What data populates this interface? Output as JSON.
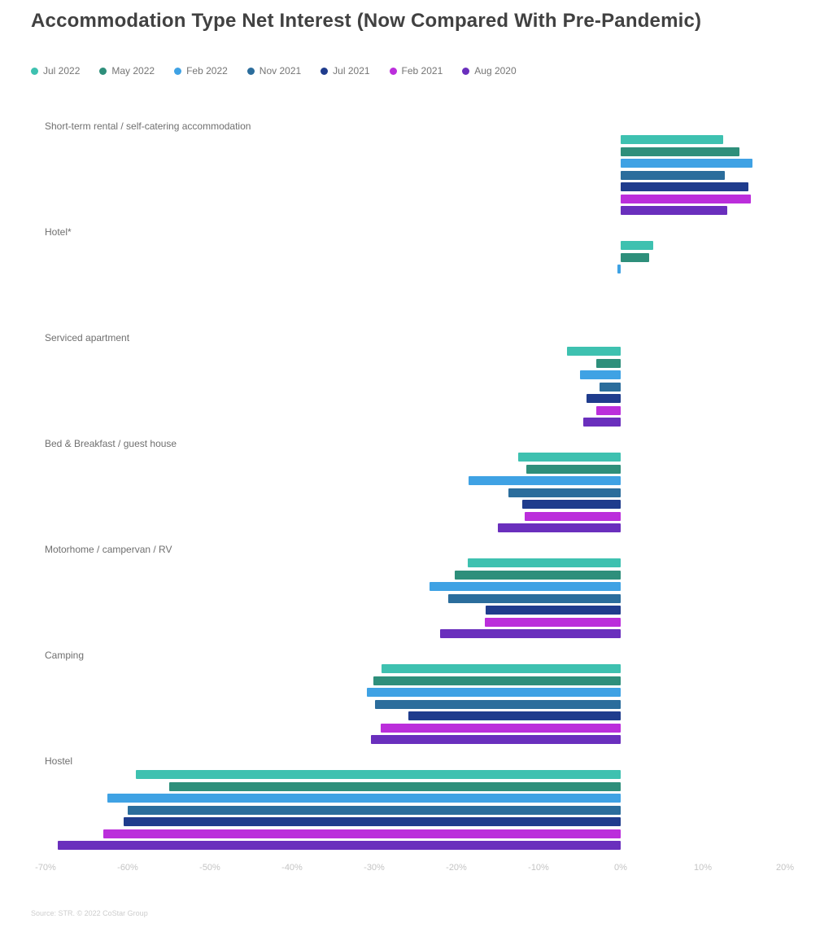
{
  "title": "Accommodation Type Net Interest (Now Compared With Pre-Pandemic)",
  "source": "Source: STR. © 2022 CoStar Group",
  "chart_data": {
    "type": "bar",
    "orientation": "horizontal",
    "title": "Accommodation Type Net Interest (Now Compared With Pre-Pandemic)",
    "categories": [
      "Short-term rental / self-catering accommodation",
      "Hotel*",
      "Serviced apartment",
      "Bed & Breakfast / guest house",
      "Motorhome / campervan / RV",
      "Camping",
      "Hostel"
    ],
    "series": [
      {
        "name": "Jul 2022",
        "color": "#3EC1B0",
        "values": [
          12.5,
          4.0,
          -6.5,
          -12.5,
          -18.6,
          -29.1,
          -59.0
        ]
      },
      {
        "name": "May 2022",
        "color": "#2E8F7B",
        "values": [
          14.5,
          3.5,
          -3.0,
          -11.5,
          -20.2,
          -30.1,
          -55.0
        ]
      },
      {
        "name": "Feb 2022",
        "color": "#3FA2E4",
        "values": [
          16.0,
          -0.4,
          -5.0,
          -18.5,
          -23.3,
          -30.9,
          -62.5
        ]
      },
      {
        "name": "Nov 2021",
        "color": "#2B6D9C",
        "values": [
          12.7,
          0,
          -2.6,
          -13.7,
          -21.0,
          -29.9,
          -60.0
        ]
      },
      {
        "name": "Jul 2021",
        "color": "#1F3C8D",
        "values": [
          15.5,
          0,
          -4.2,
          -12.0,
          -16.4,
          -25.8,
          -60.5
        ]
      },
      {
        "name": "Feb 2021",
        "color": "#BB2EDB",
        "values": [
          15.8,
          0,
          -3.0,
          -11.7,
          -16.5,
          -29.2,
          -63.0
        ]
      },
      {
        "name": "Aug 2020",
        "color": "#6A2FBD",
        "values": [
          13.0,
          0,
          -4.6,
          -15.0,
          -22.0,
          -30.4,
          -68.5
        ]
      }
    ],
    "x_ticks": [
      "-70%",
      "-60%",
      "-50%",
      "-40%",
      "-30%",
      "-20%",
      "-10%",
      "0%",
      "10%",
      "20%"
    ],
    "xlim": [
      -70,
      20
    ],
    "xlabel": "",
    "ylabel": "",
    "grid": false,
    "legend_position": "top-left",
    "units": "percent"
  }
}
